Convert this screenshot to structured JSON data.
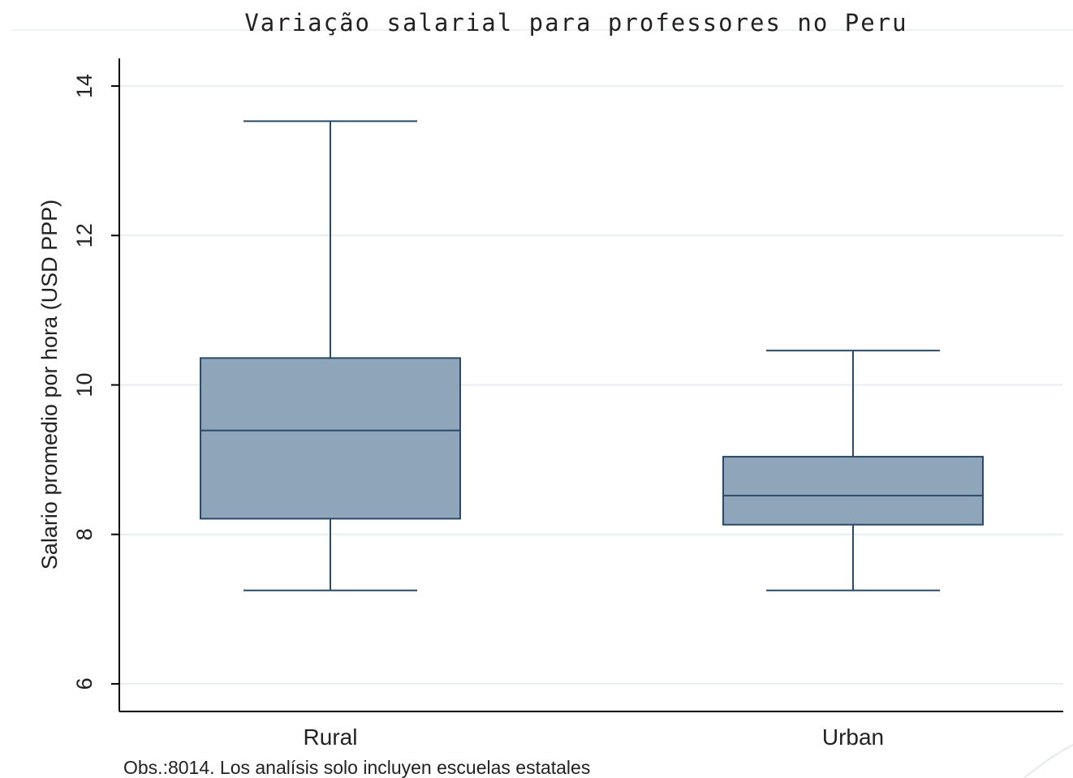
{
  "chart_data": {
    "type": "box",
    "title": "Variação salarial para professores no Peru",
    "y_label": "Salario promedio por hora (USD PPP)",
    "note": "Obs.:8014. Los analísis solo incluyen escuelas estatales",
    "categories": [
      "Rural",
      "Urban"
    ],
    "boxes": [
      {
        "whisker_low": 7.25,
        "q1": 8.21,
        "median": 9.39,
        "q3": 10.36,
        "whisker_high": 13.53
      },
      {
        "whisker_low": 7.25,
        "q1": 8.13,
        "median": 8.52,
        "q3": 9.04,
        "whisker_high": 10.46
      }
    ],
    "color": "#8fa5b9",
    "edge_color": "#2a4a69",
    "ylim": [
      5.63,
      14.37
    ],
    "yticks": [
      6,
      8,
      10,
      12,
      14
    ],
    "grid": true
  }
}
